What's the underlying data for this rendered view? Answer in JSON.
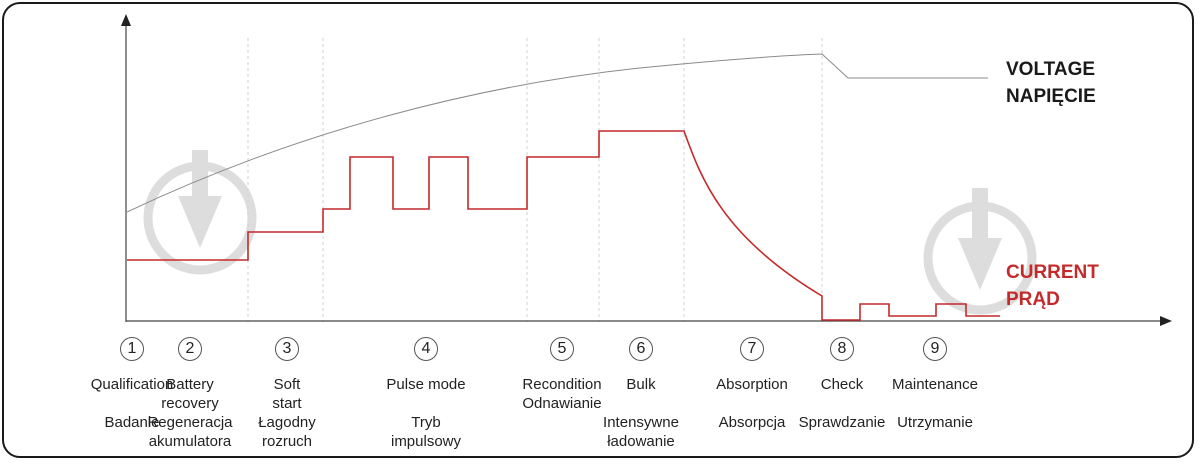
{
  "legend": {
    "voltage_en": "VOLTAGE",
    "voltage_pl": "NAPIĘCIE",
    "current_en": "CURRENT",
    "current_pl": "PRĄD"
  },
  "colors": {
    "voltage": "#8a8a8a",
    "current": "#c42a2a",
    "watermark": "#dddddd",
    "frame": "#1a1a1a"
  },
  "watermark_icon": "download-arrow-icon",
  "stages": [
    {
      "num": "1",
      "en": [
        "Qualification"
      ],
      "pl": [
        "Badanie"
      ]
    },
    {
      "num": "2",
      "en": [
        "Battery",
        "recovery"
      ],
      "pl": [
        "Regeneracja",
        "akumulatora"
      ]
    },
    {
      "num": "3",
      "en": [
        "Soft",
        "start"
      ],
      "pl": [
        "Łagodny",
        "rozruch"
      ]
    },
    {
      "num": "4",
      "en": [
        "Pulse mode"
      ],
      "pl": [
        "Tryb",
        "impulsowy"
      ]
    },
    {
      "num": "5",
      "en": [
        "Recondition",
        "Odnawianie"
      ],
      "pl": []
    },
    {
      "num": "6",
      "en": [
        "Bulk"
      ],
      "pl": [
        "Intensywne",
        "ładowanie"
      ]
    },
    {
      "num": "7",
      "en": [
        "Absorption"
      ],
      "pl": [
        "Absorpcja"
      ]
    },
    {
      "num": "8",
      "en": [
        "Check"
      ],
      "pl": [
        "Sprawdzanie"
      ]
    },
    {
      "num": "9",
      "en": [
        "Maintenance"
      ],
      "pl": [
        "Utrzymanie"
      ]
    }
  ]
}
